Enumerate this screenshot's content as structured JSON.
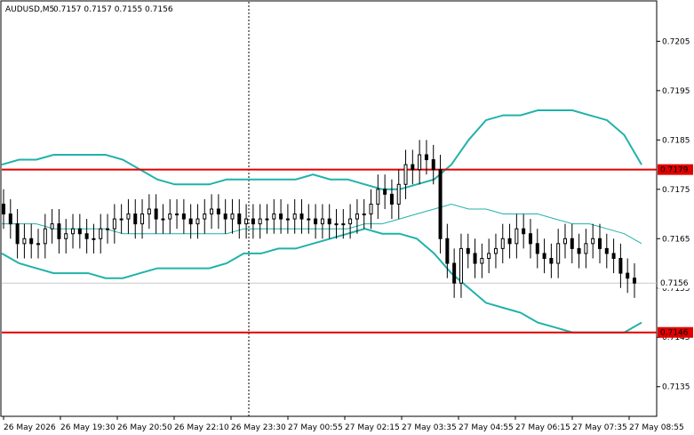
{
  "header": {
    "symbol_text": "AUDUSD,M5",
    "ohlc_text": "0.7157 0.7157 0.7155 0.7156"
  },
  "colors": {
    "background": "#ffffff",
    "candles": "#000000",
    "bands": "#20b2aa",
    "levels": "#e00000",
    "grid": "#c8c8c8"
  },
  "chart_data": {
    "type": "candlestick",
    "symbol": "AUDUSD",
    "timeframe": "M5",
    "last_bar": {
      "open": 0.7157,
      "high": 0.7157,
      "low": 0.7155,
      "close": 0.7156
    },
    "ylim": [
      0.7129,
      0.7213
    ],
    "y_ticks": [
      "0.7205",
      "0.7195",
      "0.7185",
      "0.7175",
      "0.7165",
      "0.7155",
      "0.7145",
      "0.7135"
    ],
    "x_ticks": [
      "26 May 2026",
      "26 May 19:30",
      "26 May 20:50",
      "26 May 22:10",
      "26 May 23:30",
      "27 May 00:55",
      "27 May 02:15",
      "27 May 03:35",
      "27 May 04:55",
      "27 May 06:15",
      "27 May 07:35",
      "27 May 08:55"
    ],
    "current_price": {
      "value": 0.7156,
      "label": "0.7156"
    },
    "horizontal_levels": [
      {
        "value": 0.7179,
        "label": "0.7179"
      },
      {
        "value": 0.7146,
        "label": "0.7146"
      }
    ],
    "vertical_marker_x_label": "26 May 23:30",
    "bollinger": {
      "upper": [
        0.718,
        0.7181,
        0.7181,
        0.7182,
        0.7182,
        0.7182,
        0.7182,
        0.7181,
        0.7179,
        0.7177,
        0.7176,
        0.7176,
        0.7176,
        0.7177,
        0.7177,
        0.7177,
        0.7177,
        0.7177,
        0.7178,
        0.7177,
        0.7177,
        0.7176,
        0.7175,
        0.7175,
        0.7176,
        0.7177,
        0.718,
        0.7185,
        0.7189,
        0.719,
        0.719,
        0.7191,
        0.7191,
        0.7191,
        0.719,
        0.7189,
        0.7186,
        0.718
      ],
      "middle": [
        0.7168,
        0.7168,
        0.7168,
        0.7167,
        0.7167,
        0.7167,
        0.7167,
        0.7166,
        0.7166,
        0.7166,
        0.7166,
        0.7166,
        0.7166,
        0.7166,
        0.7167,
        0.7167,
        0.7167,
        0.7167,
        0.7167,
        0.7167,
        0.7167,
        0.7168,
        0.7168,
        0.7169,
        0.717,
        0.7171,
        0.7172,
        0.7171,
        0.7171,
        0.717,
        0.717,
        0.717,
        0.7169,
        0.7168,
        0.7168,
        0.7167,
        0.7166,
        0.7164
      ],
      "lower": [
        0.7162,
        0.716,
        0.7159,
        0.7158,
        0.7158,
        0.7158,
        0.7157,
        0.7157,
        0.7158,
        0.7159,
        0.7159,
        0.7159,
        0.7159,
        0.716,
        0.7162,
        0.7162,
        0.7163,
        0.7163,
        0.7164,
        0.7165,
        0.7166,
        0.7167,
        0.7166,
        0.7166,
        0.7165,
        0.7162,
        0.7158,
        0.7155,
        0.7152,
        0.7151,
        0.715,
        0.7148,
        0.7147,
        0.7146,
        0.7146,
        0.7146,
        0.7146,
        0.7148
      ]
    },
    "close": [
      0.717,
      0.7168,
      0.7164,
      0.7165,
      0.7164,
      0.7164,
      0.7167,
      0.7168,
      0.7165,
      0.7166,
      0.7167,
      0.7166,
      0.7165,
      0.7165,
      0.7167,
      0.7167,
      0.7169,
      0.7169,
      0.717,
      0.7168,
      0.717,
      0.7171,
      0.7169,
      0.7169,
      0.717,
      0.717,
      0.7169,
      0.7168,
      0.7169,
      0.717,
      0.7171,
      0.717,
      0.7169,
      0.717,
      0.7168,
      0.7169,
      0.7168,
      0.7169,
      0.7169,
      0.717,
      0.7169,
      0.7169,
      0.717,
      0.7169,
      0.7169,
      0.7168,
      0.7169,
      0.7168,
      0.7168,
      0.7168,
      0.7169,
      0.717,
      0.717,
      0.7172,
      0.7175,
      0.7174,
      0.7172,
      0.7176,
      0.718,
      0.7179,
      0.7182,
      0.7181,
      0.7179,
      0.7165,
      0.716,
      0.7156,
      0.7163,
      0.7162,
      0.716,
      0.7161,
      0.7162,
      0.7163,
      0.7165,
      0.7164,
      0.7167,
      0.7166,
      0.7164,
      0.7162,
      0.7161,
      0.716,
      0.7164,
      0.7165,
      0.7163,
      0.7162,
      0.7164,
      0.7165,
      0.7163,
      0.7162,
      0.7161,
      0.7158,
      0.7157,
      0.7156
    ]
  }
}
